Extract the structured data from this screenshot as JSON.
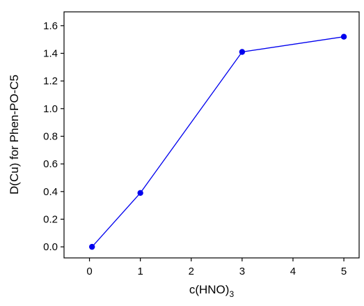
{
  "chart_data": {
    "type": "line",
    "title": "",
    "xlabel": {
      "main": "c(HNO)",
      "subscript": "3"
    },
    "ylabel": "D(Cu) for Phen-PO-C5",
    "xlim": [
      -0.5,
      5.3
    ],
    "ylim": [
      -0.08,
      1.7
    ],
    "xticks": [
      0,
      1,
      2,
      3,
      4,
      5
    ],
    "yticks": [
      0.0,
      0.2,
      0.4,
      0.6,
      0.8,
      1.0,
      1.2,
      1.4,
      1.6
    ],
    "xtick_labels": [
      "0",
      "1",
      "2",
      "3",
      "4",
      "5"
    ],
    "ytick_labels": [
      "0.0",
      "0.2",
      "0.4",
      "0.6",
      "0.8",
      "1.0",
      "1.2",
      "1.4",
      "1.6"
    ],
    "grid": false,
    "series": [
      {
        "x": [
          0.05,
          1,
          3,
          5
        ],
        "y": [
          0.0,
          0.39,
          1.41,
          1.52
        ],
        "color": "#0000ee",
        "marker": "circle"
      }
    ]
  }
}
